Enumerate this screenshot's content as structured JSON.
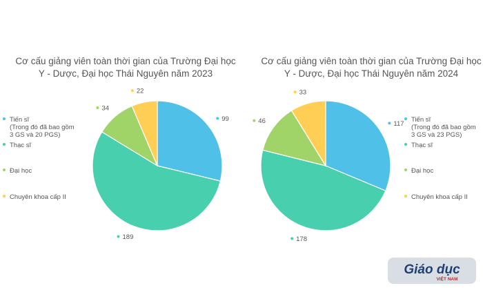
{
  "chart_data": [
    {
      "type": "pie",
      "title": "Cơ cấu giảng viên toàn thời gian của Trường Đại học Y - Dược, Đại học Thái Nguyên năm 2023",
      "categories": [
        "Tiến sĩ\n(Trong đó đã bao gồm\n3 GS và 20 PGS)",
        "Thạc sĩ",
        "Đại học",
        "Chuyên khoa cấp II"
      ],
      "values": [
        99,
        189,
        34,
        22
      ],
      "colors": [
        "#4fc0e8",
        "#48cfad",
        "#a0d468",
        "#ffce54"
      ],
      "legend_position": "left"
    },
    {
      "type": "pie",
      "title": "Cơ cấu giảng viên toàn thời gian của Trường Đại học Y - Dược, Đại học Thái Nguyên năm 2024",
      "categories": [
        "Tiến sĩ\n(Trong đó đã bao gồm\n3 GS và 23 PGS)",
        "Thạc sĩ",
        "Đại học",
        "Chuyên khoa cấp II"
      ],
      "values": [
        117,
        178,
        46,
        33
      ],
      "colors": [
        "#4fc0e8",
        "#48cfad",
        "#a0d468",
        "#ffce54"
      ],
      "legend_position": "left"
    }
  ],
  "watermark": {
    "brand": "Giáo dục",
    "sub": "VIỆT NAM"
  }
}
